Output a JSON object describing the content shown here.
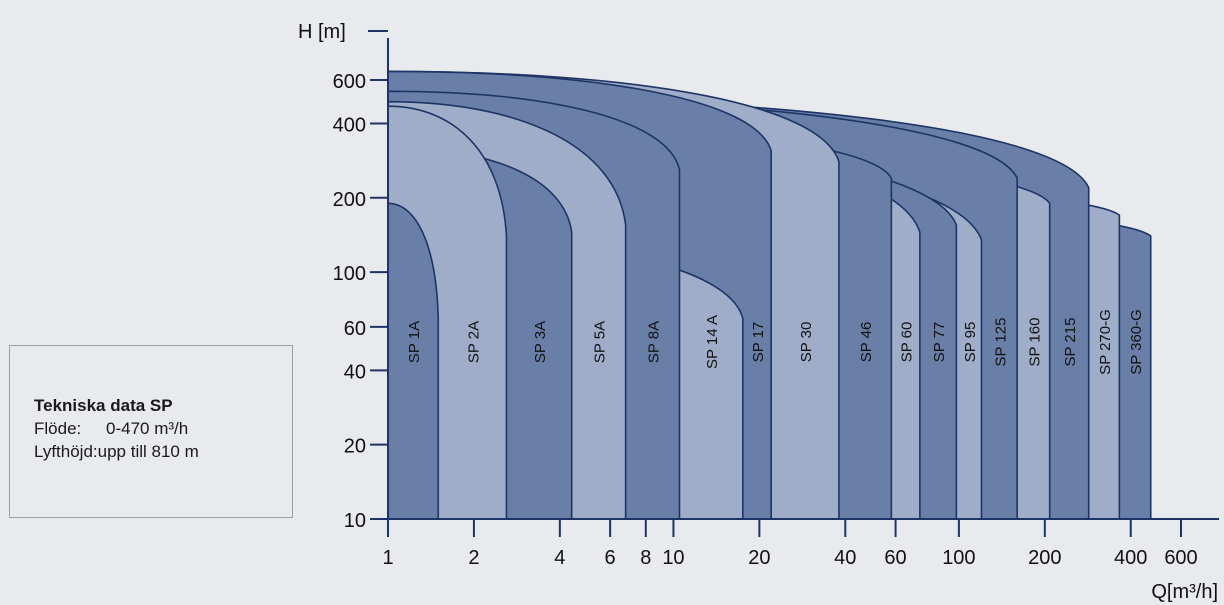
{
  "chart_data": {
    "type": "area",
    "xlabel": "Q[m³/h]",
    "ylabel": "H [m]",
    "x_scale": "log",
    "y_scale": "log",
    "xlim": [
      1,
      600
    ],
    "ylim": [
      10,
      800
    ],
    "x_ticks": [
      1,
      2,
      4,
      6,
      8,
      10,
      20,
      40,
      60,
      100,
      200,
      400,
      600
    ],
    "x_tick_labels": [
      "1",
      "2",
      "4",
      "6",
      "8",
      "10",
      "20",
      "40",
      "60",
      "100",
      "200",
      "400",
      "600"
    ],
    "y_ticks": [
      10,
      20,
      40,
      60,
      100,
      200,
      400,
      600
    ],
    "y_tick_labels": [
      "10",
      "20",
      "40",
      "60",
      "100",
      "200",
      "400",
      "600"
    ],
    "series": [
      {
        "name": "SP 1A",
        "q_max": 1.5,
        "h_shutoff": 190,
        "h_at_qmax": 65,
        "color": "#6a7fa8"
      },
      {
        "name": "SP 2A",
        "q_max": 2.6,
        "h_shutoff": 470,
        "h_at_qmax": 140,
        "color": "#9fadc8"
      },
      {
        "name": "SP 3A",
        "q_max": 4.4,
        "h_shutoff": 320,
        "h_at_qmax": 145,
        "color": "#6a7fa8"
      },
      {
        "name": "SP 5A",
        "q_max": 6.8,
        "h_shutoff": 490,
        "h_at_qmax": 155,
        "color": "#9fadc8"
      },
      {
        "name": "SP 8A",
        "q_max": 10.5,
        "h_shutoff": 540,
        "h_at_qmax": 260,
        "color": "#6a7fa8"
      },
      {
        "name": "SP 14 A",
        "q_max": 17.5,
        "h_shutoff": 140,
        "h_at_qmax": 65,
        "color": "#9fadc8"
      },
      {
        "name": "SP 17",
        "q_max": 22,
        "h_shutoff": 650,
        "h_at_qmax": 310,
        "color": "#6a7fa8"
      },
      {
        "name": "SP 30",
        "q_max": 38,
        "h_shutoff": 650,
        "h_at_qmax": 280,
        "color": "#9fadc8"
      },
      {
        "name": "SP 46",
        "q_max": 58,
        "h_shutoff": 410,
        "h_at_qmax": 240,
        "color": "#6a7fa8"
      },
      {
        "name": "SP 60",
        "q_max": 73,
        "h_shutoff": 390,
        "h_at_qmax": 145,
        "color": "#9fadc8"
      },
      {
        "name": "SP 77",
        "q_max": 98,
        "h_shutoff": 370,
        "h_at_qmax": 155,
        "color": "#6a7fa8"
      },
      {
        "name": "SP 95",
        "q_max": 120,
        "h_shutoff": 350,
        "h_at_qmax": 135,
        "color": "#9fadc8"
      },
      {
        "name": "SP 125",
        "q_max": 160,
        "h_shutoff": 520,
        "h_at_qmax": 240,
        "color": "#6a7fa8"
      },
      {
        "name": "SP 160",
        "q_max": 208,
        "h_shutoff": 320,
        "h_at_qmax": 190,
        "color": "#9fadc8"
      },
      {
        "name": "SP 215",
        "q_max": 285,
        "h_shutoff": 520,
        "h_at_qmax": 220,
        "color": "#6a7fa8"
      },
      {
        "name": "SP 270-G",
        "q_max": 365,
        "h_shutoff": 240,
        "h_at_qmax": 170,
        "color": "#9fadc8"
      },
      {
        "name": "SP 360-G",
        "q_max": 470,
        "h_shutoff": 200,
        "h_at_qmax": 140,
        "color": "#6a7fa8"
      }
    ],
    "grid": false,
    "legend": "none"
  },
  "info": {
    "title": "Tekniska data SP",
    "flow_label": "Flöde:",
    "flow_value": "0-470 m³/h",
    "head_label": "Lyfthöjd:",
    "head_value": "upp till 810 m"
  }
}
